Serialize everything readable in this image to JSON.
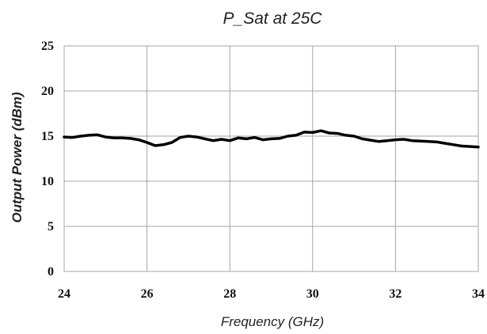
{
  "chart_data": {
    "type": "line",
    "title": "P_Sat at 25C",
    "xlabel": "Frequency (GHz)",
    "ylabel": "Output Power (dBm)",
    "xlim": [
      24,
      34
    ],
    "ylim": [
      0,
      25
    ],
    "x_ticks": [
      24,
      26,
      28,
      30,
      32,
      34
    ],
    "y_ticks": [
      0,
      5,
      10,
      15,
      20,
      25
    ],
    "grid": true,
    "legend": "none",
    "series": [
      {
        "color": "#000000",
        "x": [
          24.0,
          24.2,
          24.4,
          24.6,
          24.8,
          25.0,
          25.2,
          25.4,
          25.6,
          25.8,
          26.0,
          26.2,
          26.4,
          26.6,
          26.8,
          27.0,
          27.2,
          27.4,
          27.6,
          27.8,
          28.0,
          28.2,
          28.4,
          28.6,
          28.8,
          29.0,
          29.2,
          29.4,
          29.6,
          29.8,
          30.0,
          30.2,
          30.4,
          30.6,
          30.8,
          31.0,
          31.2,
          31.4,
          31.6,
          31.8,
          32.0,
          32.2,
          32.4,
          32.6,
          32.8,
          33.0,
          33.2,
          33.4,
          33.6,
          33.8,
          34.0
        ],
        "y": [
          14.9,
          14.85,
          15.0,
          15.1,
          15.15,
          14.9,
          14.8,
          14.8,
          14.75,
          14.6,
          14.3,
          13.95,
          14.05,
          14.3,
          14.85,
          15.0,
          14.9,
          14.7,
          14.5,
          14.65,
          14.5,
          14.8,
          14.7,
          14.85,
          14.6,
          14.7,
          14.75,
          15.0,
          15.1,
          15.45,
          15.4,
          15.6,
          15.35,
          15.3,
          15.1,
          15.0,
          14.7,
          14.55,
          14.4,
          14.5,
          14.6,
          14.65,
          14.5,
          14.45,
          14.4,
          14.35,
          14.2,
          14.05,
          13.9,
          13.85,
          13.8
        ]
      }
    ]
  }
}
